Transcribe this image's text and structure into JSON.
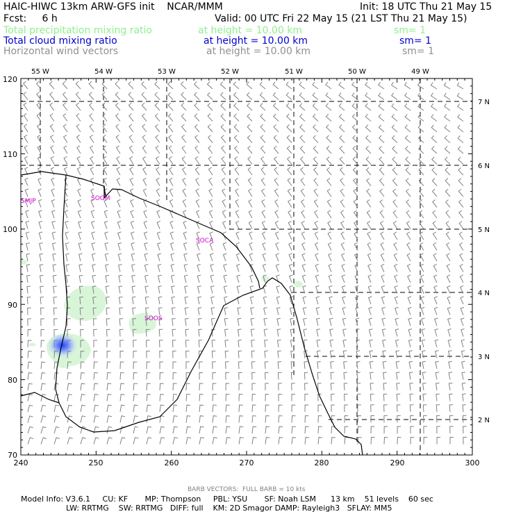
{
  "header": {
    "title": "HAIC-HIWC 13km ARW-GFS init    NCAR/MMM",
    "init": "Init: 18 UTC Thu 21 May 15",
    "fcst": "Fcst:     6 h",
    "valid": "Valid: 00 UTC Fri 22 May 15 (21 LST Thu 21 May 15)",
    "fields": [
      {
        "name": "Total precipitation mixing ratio",
        "height": "at height = 10.00 km",
        "sm": "sm= 1",
        "color": "#90ee90"
      },
      {
        "name": "Total cloud mixing ratio",
        "height": "at height = 10.00 km",
        "sm": "sm= 1",
        "color": "#0000cc"
      },
      {
        "name": "Horizontal wind vectors",
        "height": "at height = 10.00 km",
        "sm": "sm= 1",
        "color": "#909090"
      }
    ]
  },
  "map": {
    "x_ticks": [
      "240",
      "250",
      "260",
      "270",
      "280",
      "290",
      "300"
    ],
    "y_ticks": [
      "70",
      "80",
      "90",
      "100",
      "110",
      "120"
    ],
    "lon_labels": [
      "55 W",
      "54 W",
      "53 W",
      "52 W",
      "51 W",
      "50 W",
      "49 W"
    ],
    "lat_labels": [
      "2 N",
      "3 N",
      "4 N",
      "5 N",
      "6 N",
      "7 N"
    ],
    "stations": [
      "SMJP",
      "SOGM",
      "SOCA",
      "SOOS"
    ],
    "coast_color": "#000000",
    "station_color": "#cc00cc",
    "barb_color": "#808080"
  },
  "footer": {
    "barb_note": "BARB VECTORS:  FULL BARB = 10 kts",
    "model_line1": "Model Info: V3.6.1     CU: KF       MP: Thompson     PBL: YSU       SF: Noah LSM      13 km    51 levels    60 sec",
    "model_line2": "LW: RRTMG    SW: RRTMG   DIFF: full    KM: 2D Smagor DAMP: Rayleigh3   SFLAY: MM5"
  }
}
